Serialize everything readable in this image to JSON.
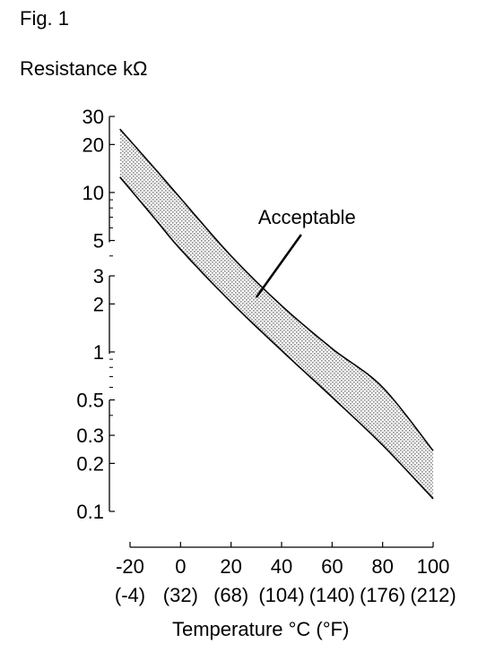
{
  "figure": {
    "label": "Fig. 1"
  },
  "chart_data": {
    "type": "area",
    "ylabel": "Resistance kΩ",
    "xlabel": "Temperature °C (°F)",
    "x_ticks": [
      {
        "c": "-20",
        "f": "(-4)"
      },
      {
        "c": "0",
        "f": "(32)"
      },
      {
        "c": "20",
        "f": "(68)"
      },
      {
        "c": "40",
        "f": "(104)"
      },
      {
        "c": "60",
        "f": "(140)"
      },
      {
        "c": "80",
        "f": "(176)"
      },
      {
        "c": "100",
        "f": "(212)"
      }
    ],
    "xlim": [
      -20,
      100
    ],
    "y_scale": "log",
    "ylim": [
      0.1,
      30
    ],
    "y_ticks": [
      "30",
      "20",
      "10",
      "5",
      "3",
      "2",
      "1",
      "0.5",
      "0.3",
      "0.2",
      "0.1"
    ],
    "series": [
      {
        "x": [
          -24,
          -10,
          0,
          20,
          40,
          60,
          80,
          100
        ],
        "y": [
          25,
          14,
          9.2,
          4,
          1.95,
          1.05,
          0.6,
          0.24
        ]
      },
      {
        "x": [
          -24,
          -10,
          0,
          20,
          40,
          60,
          80,
          100
        ],
        "y": [
          12.5,
          6.8,
          4.4,
          2.05,
          1.02,
          0.52,
          0.26,
          0.12
        ]
      }
    ],
    "annotation": {
      "text": "Acceptable",
      "x": 30,
      "y": 2.2
    },
    "grid": false,
    "colors": {
      "line": "#000000",
      "fill": "#9a9a9a"
    }
  }
}
